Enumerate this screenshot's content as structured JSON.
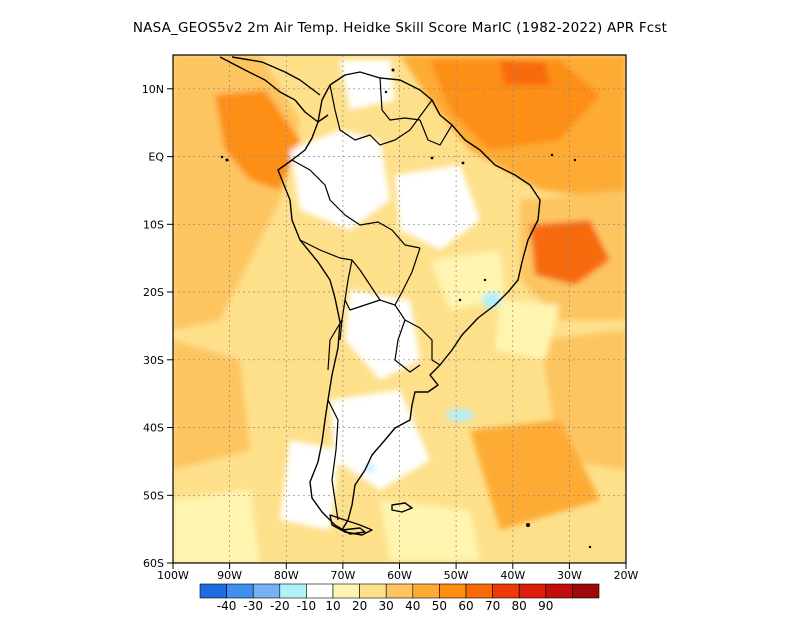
{
  "title": "NASA_GEOS5v2  2m Air Temp. Heidke Skill Score MarIC (1982-2022) APR Fcst",
  "lat_ticks": [
    "10N",
    "EQ",
    "10S",
    "20S",
    "30S",
    "40S",
    "50S",
    "60S"
  ],
  "lon_ticks": [
    "100W",
    "90W",
    "80W",
    "70W",
    "60W",
    "50W",
    "40W",
    "30W",
    "20W"
  ],
  "colorbar": {
    "colors": [
      "#1f6be0",
      "#3f8ff0",
      "#76b3f5",
      "#b0f0f9",
      "#ffffff",
      "#fff5b0",
      "#fee08b",
      "#fdc561",
      "#fdab36",
      "#fd8e12",
      "#f76a08",
      "#ec3b0a",
      "#dc1e0a",
      "#c10d0b",
      "#9e0a0a"
    ],
    "labels": [
      "-40",
      "-30",
      "-20",
      "-10",
      "10",
      "20",
      "30",
      "40",
      "50",
      "60",
      "70",
      "80",
      "90"
    ]
  },
  "field_colors": {
    "white": "#ffffff",
    "pale": "#fff5b0",
    "light": "#fee08b",
    "mid": "#fdc561",
    "orange": "#fdab36",
    "deep": "#fd8e12",
    "hot": "#f76a08",
    "blue": "#b0f0f9"
  }
}
